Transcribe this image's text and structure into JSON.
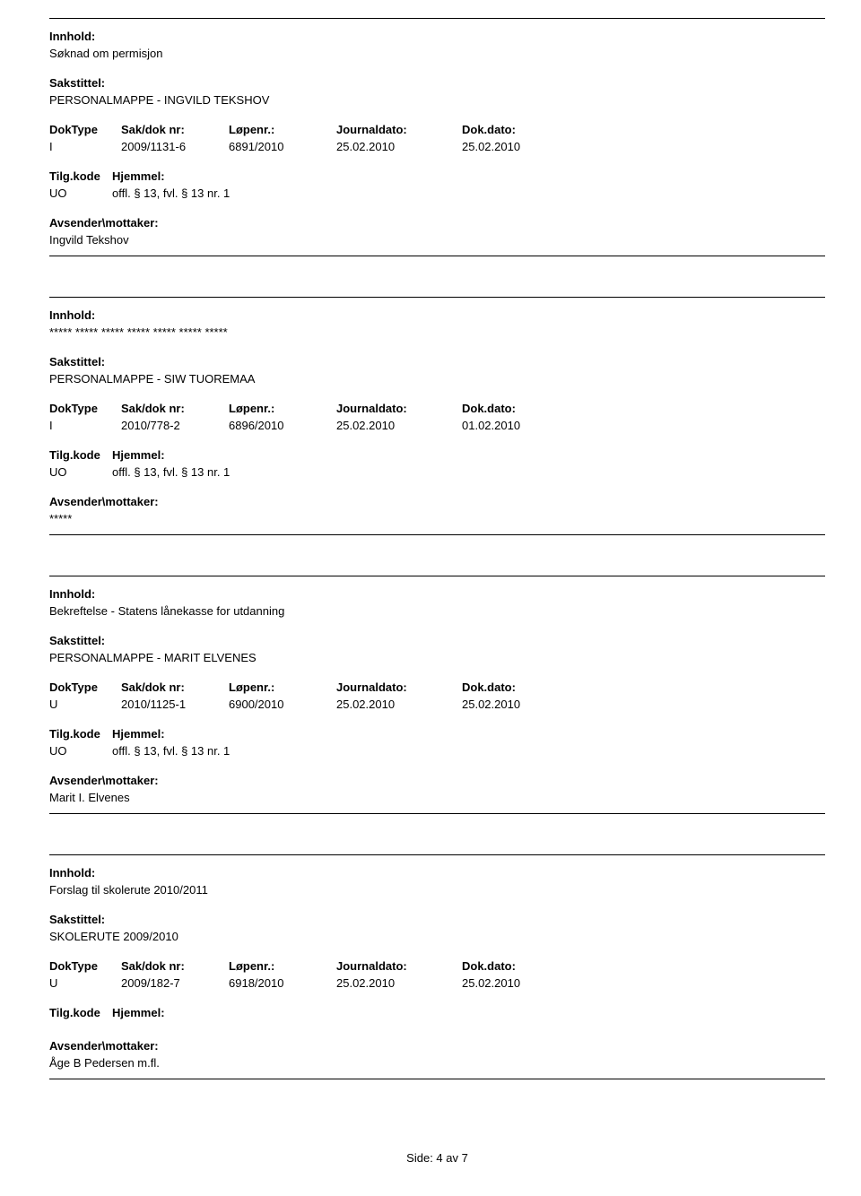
{
  "labels": {
    "innhold": "Innhold:",
    "sakstittel": "Sakstittel:",
    "doktype": "DokType",
    "sakdok": "Sak/dok nr:",
    "lopenr": "Løpenr.:",
    "journaldato": "Journaldato:",
    "dokdato": "Dok.dato:",
    "tilgkode": "Tilg.kode",
    "hjemmel": "Hjemmel:",
    "avsender": "Avsender\\mottaker:"
  },
  "entries": [
    {
      "innhold": "Søknad om permisjon",
      "sakstittel": "PERSONALMAPPE - INGVILD TEKSHOV",
      "doktype": "I",
      "sakdok": "2009/1131-6",
      "lopenr": "6891/2010",
      "journaldato": "25.02.2010",
      "dokdato": "25.02.2010",
      "tilgkode": "UO",
      "hjemmel": "offl. § 13, fvl. § 13 nr. 1",
      "avsender": "Ingvild Tekshov"
    },
    {
      "innhold": "***** ***** ***** ***** ***** ***** *****",
      "sakstittel": "PERSONALMAPPE - SIW TUOREMAA",
      "doktype": "I",
      "sakdok": "2010/778-2",
      "lopenr": "6896/2010",
      "journaldato": "25.02.2010",
      "dokdato": "01.02.2010",
      "tilgkode": "UO",
      "hjemmel": "offl. § 13, fvl. § 13 nr. 1",
      "avsender": "*****"
    },
    {
      "innhold": "Bekreftelse - Statens lånekasse for utdanning",
      "sakstittel": "PERSONALMAPPE - MARIT ELVENES",
      "doktype": "U",
      "sakdok": "2010/1125-1",
      "lopenr": "6900/2010",
      "journaldato": "25.02.2010",
      "dokdato": "25.02.2010",
      "tilgkode": "UO",
      "hjemmel": "offl. § 13, fvl. § 13 nr. 1",
      "avsender": "Marit I. Elvenes"
    },
    {
      "innhold": "Forslag til skolerute 2010/2011",
      "sakstittel": "SKOLERUTE 2009/2010",
      "doktype": "U",
      "sakdok": "2009/182-7",
      "lopenr": "6918/2010",
      "journaldato": "25.02.2010",
      "dokdato": "25.02.2010",
      "tilgkode": "",
      "hjemmel": "",
      "avsender": "Åge B Pedersen m.fl."
    }
  ],
  "footer": "Side: 4 av 7"
}
